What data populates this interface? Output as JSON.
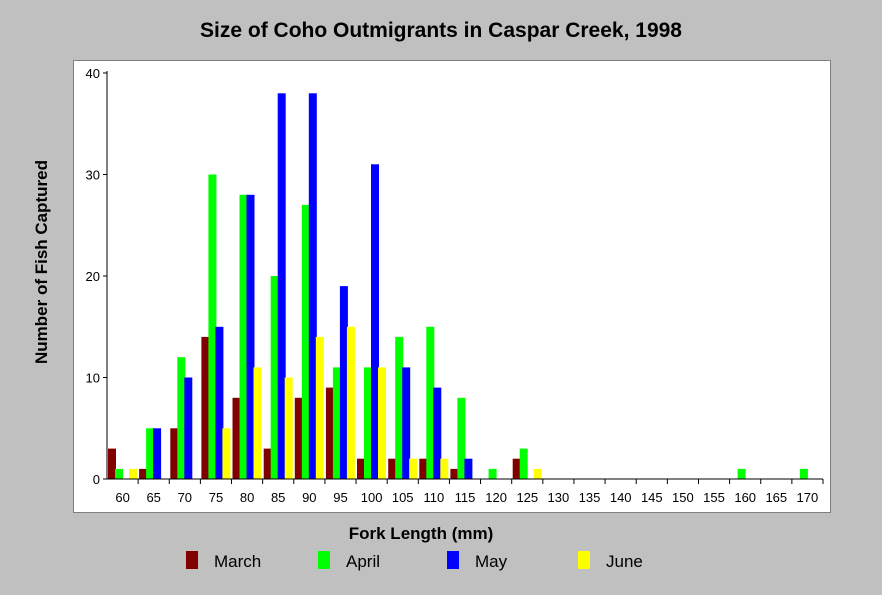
{
  "chart_data": {
    "type": "bar",
    "title": "Size of Coho Outmigrants in Caspar Creek, 1998",
    "xlabel": "Fork Length (mm)",
    "ylabel": "Number of Fish Captured",
    "ylim": [
      0,
      40
    ],
    "yticks": [
      "0",
      "10",
      "20",
      "30",
      "40"
    ],
    "categories": [
      "60",
      "65",
      "70",
      "75",
      "80",
      "85",
      "90",
      "95",
      "100",
      "105",
      "110",
      "115",
      "120",
      "125",
      "130",
      "135",
      "140",
      "145",
      "150",
      "155",
      "160",
      "165",
      "170"
    ],
    "series": [
      {
        "name": "March",
        "color": "#800000",
        "values": [
          3,
          1,
          5,
          14,
          8,
          3,
          8,
          9,
          2,
          2,
          2,
          1,
          0,
          2,
          0,
          0,
          0,
          0,
          0,
          0,
          0,
          0,
          0
        ]
      },
      {
        "name": "April",
        "color": "#00ff00",
        "values": [
          1,
          5,
          12,
          30,
          28,
          20,
          27,
          11,
          11,
          14,
          15,
          8,
          1,
          3,
          0,
          0,
          0,
          0,
          0,
          0,
          1,
          0,
          1
        ]
      },
      {
        "name": "May",
        "color": "#0000ff",
        "values": [
          0,
          5,
          10,
          15,
          28,
          38,
          38,
          19,
          31,
          11,
          9,
          2,
          0,
          0,
          0,
          0,
          0,
          0,
          0,
          0,
          0,
          0,
          0
        ]
      },
      {
        "name": "June",
        "color": "#ffff00",
        "values": [
          1,
          0,
          0,
          5,
          11,
          10,
          14,
          15,
          11,
          2,
          2,
          0,
          0,
          1,
          0,
          0,
          0,
          0,
          0,
          0,
          0,
          0,
          0
        ]
      }
    ],
    "grid": false,
    "legend_position": "bottom"
  }
}
